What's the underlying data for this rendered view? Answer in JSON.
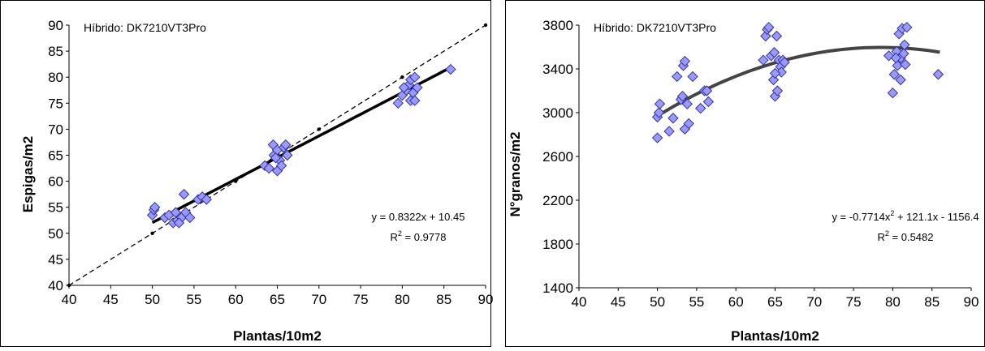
{
  "chart_data": [
    {
      "type": "scatter",
      "annotation": "Híbrido: DK7210VT3Pro",
      "xlabel": "Plantas/10m2",
      "ylabel": "Espigas/m2",
      "xlim": [
        40,
        90
      ],
      "xticks": [
        40,
        45,
        50,
        55,
        60,
        65,
        70,
        75,
        80,
        85,
        90
      ],
      "ylim": [
        40,
        90
      ],
      "yticks": [
        40,
        45,
        50,
        55,
        60,
        65,
        70,
        75,
        80,
        85,
        90
      ],
      "series": [
        {
          "color": "#9999ff",
          "x": [
            50,
            50.2,
            50.3,
            51.5,
            52,
            52.5,
            53,
            53.5,
            53.8,
            54,
            54.5,
            55.5,
            56,
            56.5,
            53.2,
            52.8,
            63.5,
            64,
            64.5,
            64.6,
            65,
            65,
            65.3,
            65.5,
            65.8,
            66,
            66.2,
            64.8,
            79.5,
            80,
            80.5,
            80.8,
            81,
            81,
            81.3,
            81.5,
            81.8,
            80.2,
            81.5,
            85.8
          ],
          "y": [
            53.5,
            54.5,
            55,
            53,
            53.5,
            52,
            52.5,
            53,
            57.5,
            54,
            53,
            56.5,
            57,
            56.5,
            52,
            54,
            63,
            62.5,
            67,
            65,
            62,
            66,
            64,
            63,
            66.5,
            67,
            65,
            64.5,
            75,
            76.5,
            77.5,
            78.5,
            79.5,
            75.5,
            77,
            80,
            78,
            78,
            75.5,
            81.5
          ]
        }
      ],
      "trend": {
        "coef": [
          10.45,
          0.8322
        ],
        "xrange": [
          50,
          86
        ]
      },
      "reference_line": [
        40,
        50,
        60,
        70,
        80,
        90
      ],
      "equation": [
        "y = 0.8322x + 10.45"
      ],
      "r2": [
        "R",
        "2",
        " = 0.9778"
      ]
    },
    {
      "type": "scatter",
      "annotation": "Híbrido: DK7210VT3Pro",
      "xlabel": "Plantas/10m2",
      "ylabel": "N°granos/m2",
      "xlim": [
        40,
        90
      ],
      "xticks": [
        40,
        45,
        50,
        55,
        60,
        65,
        70,
        75,
        80,
        85,
        90
      ],
      "ylim": [
        1400,
        3800
      ],
      "yticks": [
        1400,
        1800,
        2200,
        2600,
        3000,
        3400,
        3800
      ],
      "series": [
        {
          "color": "#9999ff",
          "x": [
            50,
            50,
            50.2,
            50.3,
            51.5,
            52,
            52.5,
            53,
            53.2,
            53.3,
            53.5,
            53.5,
            53.8,
            54,
            54.5,
            55.5,
            56,
            56.3,
            56.5,
            63.5,
            63.8,
            64,
            64.2,
            64.5,
            64.8,
            65,
            65.2,
            65.3,
            65.5,
            65.7,
            65.8,
            66,
            66.2,
            65,
            64.9,
            79.5,
            80,
            80.2,
            80.5,
            80.6,
            80.8,
            81,
            81,
            81.2,
            81.4,
            81.5,
            81.8,
            81.6,
            80.4,
            85.8
          ],
          "y": [
            2770,
            2960,
            3000,
            3080,
            2830,
            2950,
            3330,
            3120,
            3150,
            3430,
            3470,
            2850,
            3080,
            2900,
            3330,
            3040,
            3200,
            3200,
            3100,
            3480,
            3700,
            3760,
            3780,
            3520,
            3300,
            3150,
            3700,
            3200,
            3480,
            3420,
            3370,
            3480,
            3460,
            3360,
            3550,
            3520,
            3180,
            3350,
            3560,
            3430,
            3720,
            3300,
            3500,
            3770,
            3540,
            3620,
            3780,
            3440,
            3500,
            3350
          ]
        }
      ],
      "trend": {
        "coef": [
          -1156.4,
          121.1,
          -0.7714
        ],
        "xrange": [
          50,
          86
        ]
      },
      "equation": [
        "y = -0.7714x",
        "2",
        " + 121.1x - 1156.4"
      ],
      "r2": [
        "R",
        "2",
        " = 0.5482"
      ]
    }
  ]
}
